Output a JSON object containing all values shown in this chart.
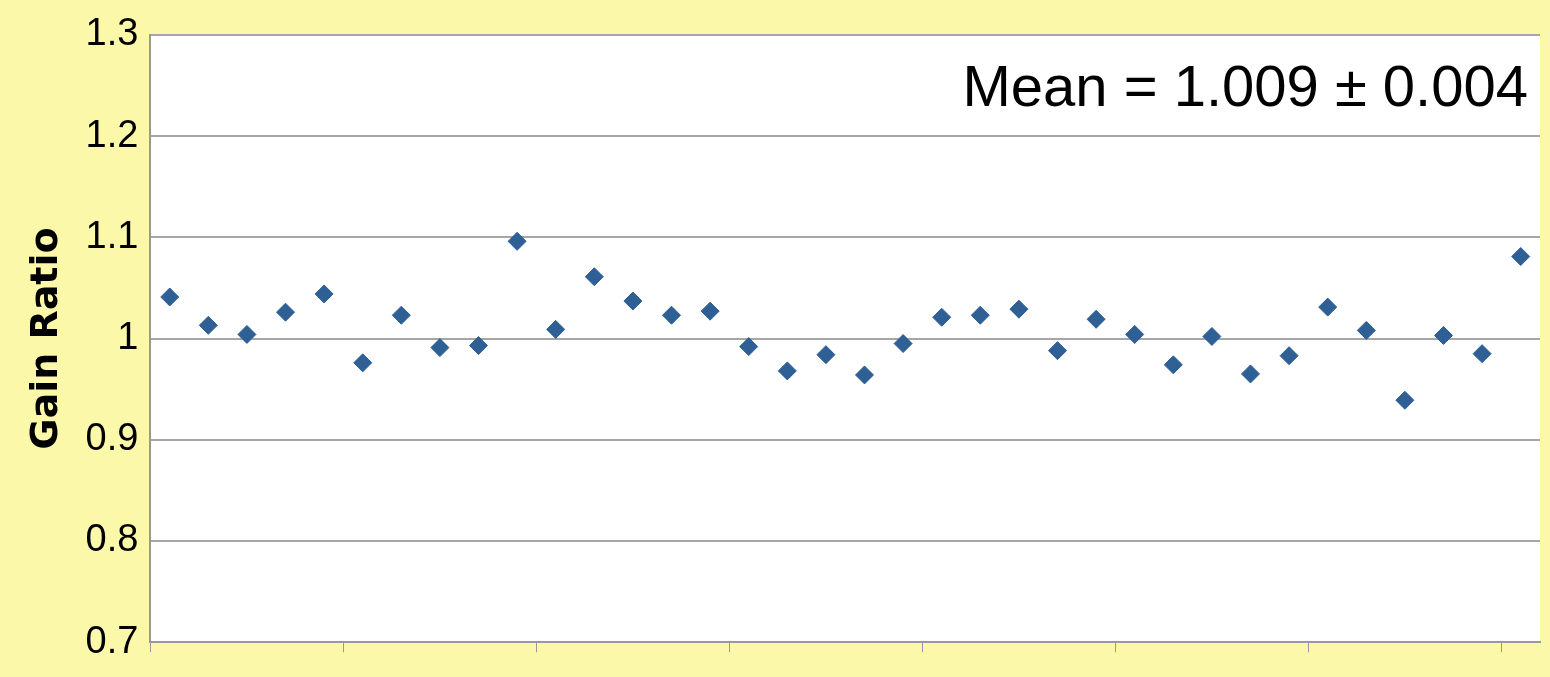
{
  "chart_data": {
    "type": "scatter",
    "ylabel": "Gain Ratio",
    "annotations": [
      "Mean = 1.009 ± 0.004"
    ],
    "categories": [
      null,
      null,
      null,
      null,
      null,
      null,
      null,
      null,
      null,
      null,
      null,
      null,
      null,
      null,
      null,
      null,
      null,
      null,
      null,
      null,
      null,
      null,
      null,
      null,
      null,
      null,
      null,
      null,
      null,
      null,
      null,
      null,
      null,
      null,
      null,
      null
    ],
    "series": [
      {
        "color": "#2e6096",
        "values": [
          1.041,
          1.013,
          1.004,
          1.026,
          1.044,
          0.976,
          1.023,
          0.991,
          0.993,
          1.096,
          1.009,
          1.061,
          1.037,
          1.023,
          1.027,
          0.992,
          0.968,
          0.984,
          0.964,
          0.995,
          1.021,
          1.023,
          1.029,
          0.988,
          1.019,
          1.004,
          0.974,
          1.002,
          0.965,
          0.983,
          1.031,
          1.008,
          0.939,
          1.003,
          0.985,
          1.081
        ]
      }
    ],
    "ylim": [
      0.7,
      1.3
    ],
    "yticks": [
      0.7,
      0.8,
      0.9,
      1,
      1.1,
      1.2,
      1.3
    ],
    "grid": "y",
    "marker": "diamond",
    "legend": false,
    "tick_labels": "y"
  }
}
